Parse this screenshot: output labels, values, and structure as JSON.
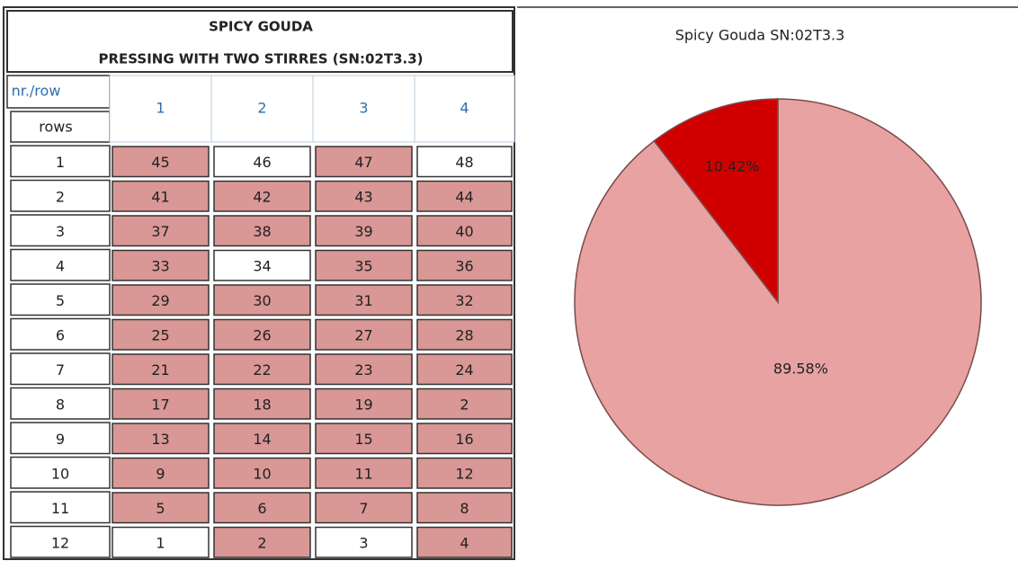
{
  "table": {
    "title": [
      "SPICY GOUDA",
      "PRESSING WITH TWO STIRRES (SN:02T3.3)"
    ],
    "corner": [
      "nr./row",
      "rows"
    ],
    "columns": [
      1,
      2,
      3,
      4
    ],
    "row_labels": [
      1,
      2,
      3,
      4,
      5,
      6,
      7,
      8,
      9,
      10,
      11,
      12
    ],
    "rows": [
      [
        45,
        46,
        47,
        48
      ],
      [
        41,
        42,
        43,
        44
      ],
      [
        37,
        38,
        39,
        40
      ],
      [
        33,
        34,
        35,
        36
      ],
      [
        29,
        30,
        31,
        32
      ],
      [
        25,
        26,
        27,
        28
      ],
      [
        21,
        22,
        23,
        24
      ],
      [
        17,
        18,
        19,
        2
      ],
      [
        13,
        14,
        15,
        16
      ],
      [
        9,
        10,
        11,
        12
      ],
      [
        5,
        6,
        7,
        8
      ],
      [
        1,
        2,
        3,
        4
      ]
    ],
    "fills": [
      [
        "#d99795",
        "#ffffff",
        "#d99795",
        "#ffffff"
      ],
      [
        "#d99795",
        "#d99795",
        "#d99795",
        "#d99795"
      ],
      [
        "#d99795",
        "#d99795",
        "#d99795",
        "#d99795"
      ],
      [
        "#d99795",
        "#ffffff",
        "#d99795",
        "#d99795"
      ],
      [
        "#d99795",
        "#d99795",
        "#d99795",
        "#d99795"
      ],
      [
        "#d99795",
        "#d99795",
        "#d99795",
        "#d99795"
      ],
      [
        "#d99795",
        "#d99795",
        "#d99795",
        "#d99795"
      ],
      [
        "#d99795",
        "#d99795",
        "#d99795",
        "#d99795"
      ],
      [
        "#d99795",
        "#d99795",
        "#d99795",
        "#d99795"
      ],
      [
        "#d99795",
        "#d99795",
        "#d99795",
        "#d99795"
      ],
      [
        "#d99795",
        "#d99795",
        "#d99795",
        "#d99795"
      ],
      [
        "#ffffff",
        "#d99795",
        "#ffffff",
        "#d99795"
      ]
    ]
  },
  "chart_data": {
    "type": "pie",
    "title": "Spicy Gouda   SN:02T3.3",
    "values": [
      89.58,
      10.42
    ],
    "value_labels": [
      "89.58%",
      "10.42%"
    ],
    "colors": [
      "#e8a2a2",
      "#d10000"
    ]
  }
}
